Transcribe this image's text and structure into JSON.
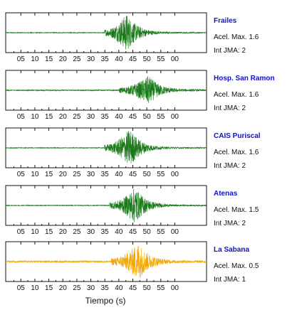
{
  "chart_data": {
    "type": "line",
    "xlabel": "Tiempo (s)",
    "xlim": [
      1,
      60
    ],
    "x_ticks": [
      "05",
      "10",
      "15",
      "20",
      "25",
      "30",
      "35",
      "40",
      "45",
      "50",
      "55",
      "00"
    ],
    "panels": [
      {
        "name": "Frailes",
        "acel_label": "Acel. Max. 1.6",
        "jma_label": "Int JMA: 2",
        "color": "#1a7a1a",
        "onset": 30.0,
        "peak_time": 36.5,
        "peak_amp": 1.0,
        "noise": 0.02
      },
      {
        "name": "Hosp. San Ramon",
        "acel_label": "Acel. Max. 1.6",
        "jma_label": "Int JMA: 2",
        "color": "#1a7a1a",
        "onset": 34.3,
        "peak_time": 43.0,
        "peak_amp": 0.75,
        "noise": 0.03
      },
      {
        "name": "CAIS Puriscal",
        "acel_label": "Acel. Max. 1.6",
        "jma_label": "Int JMA: 2",
        "color": "#1a7a1a",
        "onset": 30.0,
        "peak_time": 37.5,
        "peak_amp": 1.0,
        "noise": 0.02
      },
      {
        "name": "Atenas",
        "acel_label": "Acel. Max. 1.5",
        "jma_label": "Int JMA: 2",
        "color": "#1a7a1a",
        "onset": 31.5,
        "peak_time": 39.0,
        "peak_amp": 0.95,
        "noise": 0.02
      },
      {
        "name": "La Sabana",
        "acel_label": "Acel. Max. 0.5",
        "jma_label": "Int JMA: 1",
        "color": "#f5a800",
        "onset": 32.0,
        "peak_time": 40.0,
        "peak_amp": 0.95,
        "noise": 0.05
      }
    ]
  }
}
